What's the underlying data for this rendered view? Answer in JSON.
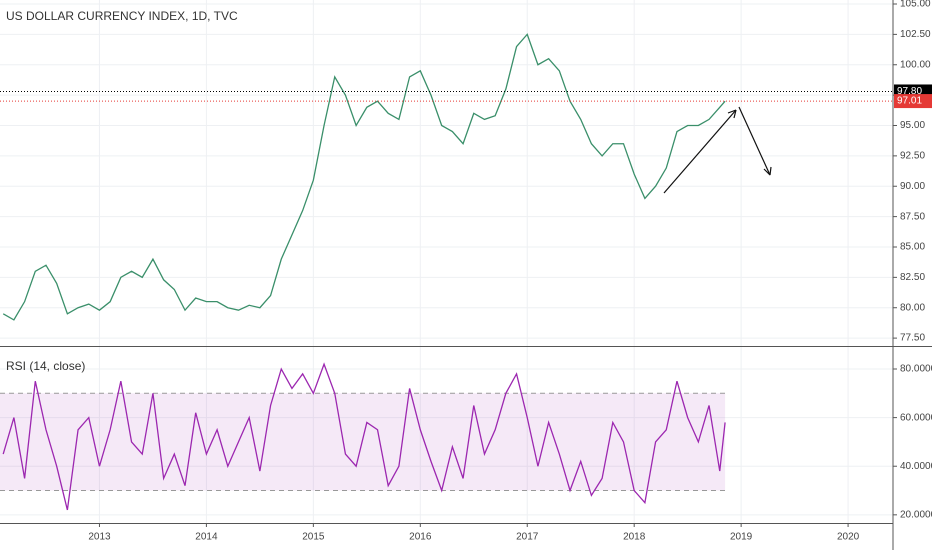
{
  "chart_data": [
    {
      "type": "line",
      "title": "US DOLLAR CURRENCY INDEX, 1D, TVC",
      "color": "#3a8f6a",
      "x": [
        2012.1,
        2012.2,
        2012.3,
        2012.4,
        2012.5,
        2012.6,
        2012.7,
        2012.8,
        2012.9,
        2013.0,
        2013.1,
        2013.2,
        2013.3,
        2013.4,
        2013.5,
        2013.6,
        2013.7,
        2013.8,
        2013.9,
        2014.0,
        2014.1,
        2014.2,
        2014.3,
        2014.4,
        2014.5,
        2014.6,
        2014.7,
        2014.8,
        2014.9,
        2015.0,
        2015.1,
        2015.2,
        2015.3,
        2015.4,
        2015.5,
        2015.6,
        2015.7,
        2015.8,
        2015.9,
        2016.0,
        2016.1,
        2016.2,
        2016.3,
        2016.4,
        2016.5,
        2016.6,
        2016.7,
        2016.8,
        2016.9,
        2017.0,
        2017.1,
        2017.2,
        2017.3,
        2017.4,
        2017.5,
        2017.6,
        2017.7,
        2017.8,
        2017.9,
        2018.0,
        2018.1,
        2018.2,
        2018.3,
        2018.4,
        2018.5,
        2018.6,
        2018.7,
        2018.8,
        2018.85
      ],
      "values": [
        79.5,
        79.0,
        80.5,
        83.0,
        83.5,
        82.0,
        79.5,
        80.0,
        80.3,
        79.8,
        80.5,
        82.5,
        83.0,
        82.5,
        84.0,
        82.3,
        81.5,
        79.8,
        80.8,
        80.5,
        80.5,
        80.0,
        79.8,
        80.2,
        80.0,
        81.0,
        84.0,
        86.0,
        88.0,
        90.5,
        95.0,
        99.0,
        97.5,
        95.0,
        96.5,
        97.0,
        96.0,
        95.5,
        99.0,
        99.5,
        97.5,
        95.0,
        94.5,
        93.5,
        96.0,
        95.5,
        95.8,
        98.0,
        101.5,
        102.5,
        100.0,
        100.5,
        99.5,
        97.0,
        95.5,
        93.5,
        92.5,
        93.5,
        93.5,
        91.0,
        89.0,
        90.0,
        91.5,
        94.5,
        95.0,
        95.0,
        95.5,
        96.5,
        97.0
      ],
      "xlim": [
        2012.07,
        2020.42
      ],
      "ylim": [
        76.85,
        105.33
      ],
      "yticks": [
        {
          "value": 77.5,
          "label": "77.50"
        },
        {
          "value": 80,
          "label": "80.00"
        },
        {
          "value": 82.5,
          "label": "82.50"
        },
        {
          "value": 85,
          "label": "85.00"
        },
        {
          "value": 87.5,
          "label": "87.50"
        },
        {
          "value": 90,
          "label": "90.00"
        },
        {
          "value": 92.5,
          "label": "92.50"
        },
        {
          "value": 95,
          "label": "95.00"
        },
        {
          "value": 97.5,
          "label": "97.50"
        },
        {
          "value": 100,
          "label": "100.00"
        },
        {
          "value": 102.5,
          "label": "102.50"
        },
        {
          "value": 105,
          "label": "105.00"
        }
      ],
      "price_lines": [
        {
          "value": 97.8,
          "label": "97.80",
          "color": "#000000"
        },
        {
          "value": 97.01,
          "label": "97.01",
          "color": "#e53935"
        }
      ],
      "grid": true
    },
    {
      "type": "line",
      "title": "RSI (14, close)",
      "color": "#9c27b0",
      "x": [
        2012.1,
        2012.2,
        2012.3,
        2012.4,
        2012.5,
        2012.6,
        2012.7,
        2012.8,
        2012.9,
        2013.0,
        2013.1,
        2013.2,
        2013.3,
        2013.4,
        2013.5,
        2013.6,
        2013.7,
        2013.8,
        2013.9,
        2014.0,
        2014.1,
        2014.2,
        2014.3,
        2014.4,
        2014.5,
        2014.6,
        2014.7,
        2014.8,
        2014.9,
        2015.0,
        2015.1,
        2015.2,
        2015.3,
        2015.4,
        2015.5,
        2015.6,
        2015.7,
        2015.8,
        2015.9,
        2016.0,
        2016.1,
        2016.2,
        2016.3,
        2016.4,
        2016.5,
        2016.6,
        2016.7,
        2016.8,
        2016.9,
        2017.0,
        2017.1,
        2017.2,
        2017.3,
        2017.4,
        2017.5,
        2017.6,
        2017.7,
        2017.8,
        2017.9,
        2018.0,
        2018.1,
        2018.2,
        2018.3,
        2018.4,
        2018.5,
        2018.6,
        2018.7,
        2018.8,
        2018.85
      ],
      "values": [
        45,
        60,
        35,
        75,
        55,
        40,
        22,
        55,
        60,
        40,
        55,
        75,
        50,
        45,
        70,
        35,
        45,
        32,
        62,
        45,
        55,
        40,
        50,
        60,
        38,
        65,
        80,
        72,
        78,
        70,
        82,
        70,
        45,
        40,
        58,
        55,
        32,
        40,
        72,
        55,
        42,
        30,
        48,
        35,
        65,
        45,
        55,
        70,
        78,
        60,
        40,
        58,
        45,
        30,
        42,
        28,
        35,
        58,
        50,
        30,
        25,
        50,
        55,
        75,
        60,
        50,
        65,
        38,
        58
      ],
      "xlim": [
        2012.07,
        2020.42
      ],
      "ylim": [
        16.64,
        88.64
      ],
      "yticks": [
        {
          "value": 20,
          "label": "20.0000"
        },
        {
          "value": 40,
          "label": "40.0000"
        },
        {
          "value": 60,
          "label": "60.0000"
        },
        {
          "value": 80,
          "label": "80.0000"
        }
      ],
      "xticks": [
        2013,
        2014,
        2015,
        2016,
        2017,
        2018,
        2019,
        2020
      ],
      "bands": [
        30,
        70
      ],
      "band_color": "#9c27b0",
      "grid": true
    }
  ]
}
